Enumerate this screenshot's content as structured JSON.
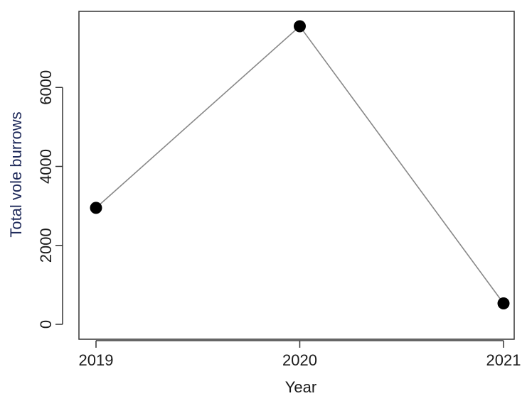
{
  "chart_data": {
    "type": "line",
    "title": "",
    "xlabel": "Year",
    "ylabel": "Total vole burrows",
    "categories": [
      "2019",
      "2020",
      "2021"
    ],
    "series": [
      {
        "values": [
          2950,
          7550,
          530
        ]
      }
    ],
    "yticks": [
      0,
      2000,
      4000,
      6000
    ],
    "ytick_labels": [
      "0",
      "2000",
      "4000",
      "6000"
    ],
    "ylim": [
      0,
      7550
    ],
    "grid": false,
    "legend": "none",
    "colors": {
      "line": "#888888",
      "marker": "#000000",
      "frame": "#333333"
    }
  }
}
